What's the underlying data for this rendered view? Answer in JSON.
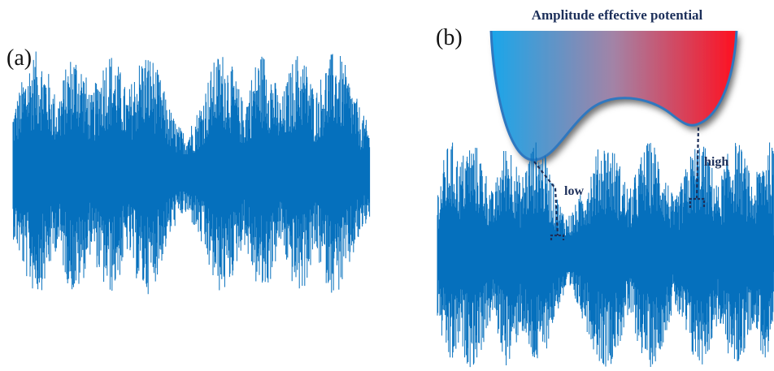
{
  "panels": {
    "a": {
      "label": "(a)"
    },
    "b": {
      "label": "(b)"
    }
  },
  "potential": {
    "title": "Amplitude effective potential",
    "gradient_left": "#1aa6ea",
    "gradient_mid": "#a383a6",
    "gradient_right": "#ff1020",
    "outline_color": "#2f78c0",
    "low_label": "low",
    "high_label": "high"
  },
  "signal": {
    "color": "#0570bd",
    "annotation_color": "#1c2f5a"
  }
}
